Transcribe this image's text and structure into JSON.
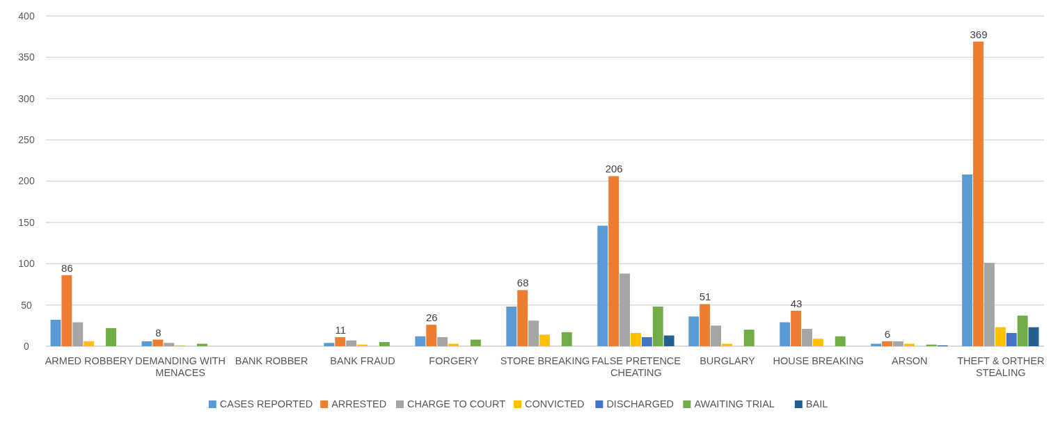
{
  "chart_data": {
    "type": "bar",
    "categories": [
      "ARMED ROBBERY",
      "DEMANDING WITH MENACES",
      "BANK ROBBER",
      "BANK FRAUD",
      "FORGERY",
      "STORE BREAKING",
      "FALSE PRETENCE CHEATING",
      "BURGLARY",
      "HOUSE BREAKING",
      "ARSON",
      "THEFT & ORTHER STEALING"
    ],
    "series": [
      {
        "name": "CASES REPORTED",
        "color": "#5b9bd5",
        "values": [
          32,
          6,
          0,
          4,
          12,
          48,
          146,
          36,
          29,
          3,
          208
        ]
      },
      {
        "name": "ARRESTED",
        "color": "#ed7d31",
        "values": [
          86,
          8,
          0,
          11,
          26,
          68,
          206,
          51,
          43,
          6,
          369
        ],
        "value_labels": [
          "86",
          "8",
          null,
          "11",
          "26",
          "68",
          "206",
          "51",
          "43",
          "6",
          "369"
        ]
      },
      {
        "name": "CHARGE TO COURT",
        "color": "#a5a5a5",
        "values": [
          29,
          4,
          0,
          7,
          11,
          31,
          88,
          25,
          21,
          6,
          101
        ]
      },
      {
        "name": "CONVICTED",
        "color": "#ffc000",
        "values": [
          6,
          1,
          0,
          2,
          3,
          14,
          16,
          3,
          9,
          3,
          23
        ]
      },
      {
        "name": "DISCHARGED",
        "color": "#4472c4",
        "values": [
          0,
          0,
          0,
          0,
          0,
          0,
          11,
          0,
          0,
          0,
          16
        ]
      },
      {
        "name": "AWAITING TRIAL",
        "color": "#70ad47",
        "values": [
          22,
          3,
          0,
          5,
          8,
          17,
          48,
          20,
          12,
          2,
          37
        ]
      },
      {
        "name": "BAIL",
        "color": "#255e91",
        "values": [
          0,
          0,
          0,
          0,
          0,
          0,
          13,
          0,
          0,
          1,
          23
        ]
      }
    ],
    "ylim": [
      0,
      400
    ],
    "yticks": [
      0,
      50,
      100,
      150,
      200,
      250,
      300,
      350,
      400
    ],
    "grid": "y",
    "legend": "bottom"
  }
}
